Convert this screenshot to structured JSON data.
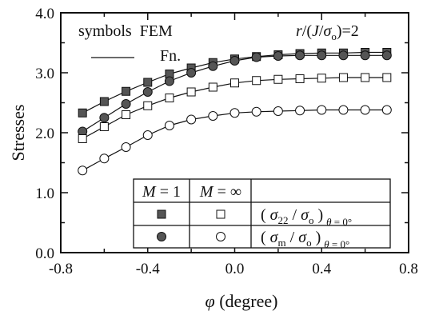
{
  "chart_data": {
    "type": "line",
    "xlabel_symbol": "φ",
    "xlabel_text": " (degree)",
    "ylabel": "Stresses",
    "xlim": [
      -0.8,
      0.8
    ],
    "ylim": [
      0.0,
      4.0
    ],
    "xticks": [
      "-0.8",
      "-0.4",
      "0.0",
      "0.4",
      "0.8"
    ],
    "yticks": [
      "0.0",
      "1.0",
      "2.0",
      "3.0",
      "4.0"
    ],
    "grid": false,
    "legend": {
      "symbols_label": "symbols  FEM",
      "line_label": "Fn.",
      "ratio_label": "r/(J/σo)=2"
    },
    "table": {
      "header_m1": "M = 1",
      "header_minf": "M = ∞",
      "row1_label": "( σ22 / σo ) θ=0°",
      "row2_label": "( σm / σo ) θ=0°"
    },
    "x": [
      -0.7,
      -0.6,
      -0.5,
      -0.4,
      -0.3,
      -0.2,
      -0.1,
      0.0,
      0.1,
      0.2,
      0.3,
      0.4,
      0.5,
      0.6,
      0.7
    ],
    "series": [
      {
        "marker": "square-filled",
        "values": [
          2.33,
          2.52,
          2.69,
          2.84,
          2.98,
          3.08,
          3.17,
          3.23,
          3.27,
          3.3,
          3.32,
          3.33,
          3.33,
          3.34,
          3.34
        ]
      },
      {
        "marker": "circle-filled",
        "values": [
          2.02,
          2.25,
          2.48,
          2.68,
          2.86,
          3.0,
          3.11,
          3.2,
          3.26,
          3.28,
          3.29,
          3.29,
          3.29,
          3.29,
          3.29
        ]
      },
      {
        "marker": "square-open",
        "values": [
          1.9,
          2.1,
          2.3,
          2.45,
          2.58,
          2.68,
          2.76,
          2.83,
          2.87,
          2.89,
          2.9,
          2.91,
          2.92,
          2.92,
          2.92
        ]
      },
      {
        "marker": "circle-open",
        "values": [
          1.37,
          1.57,
          1.76,
          1.96,
          2.12,
          2.22,
          2.28,
          2.33,
          2.35,
          2.36,
          2.37,
          2.38,
          2.38,
          2.38,
          2.38
        ]
      }
    ]
  }
}
